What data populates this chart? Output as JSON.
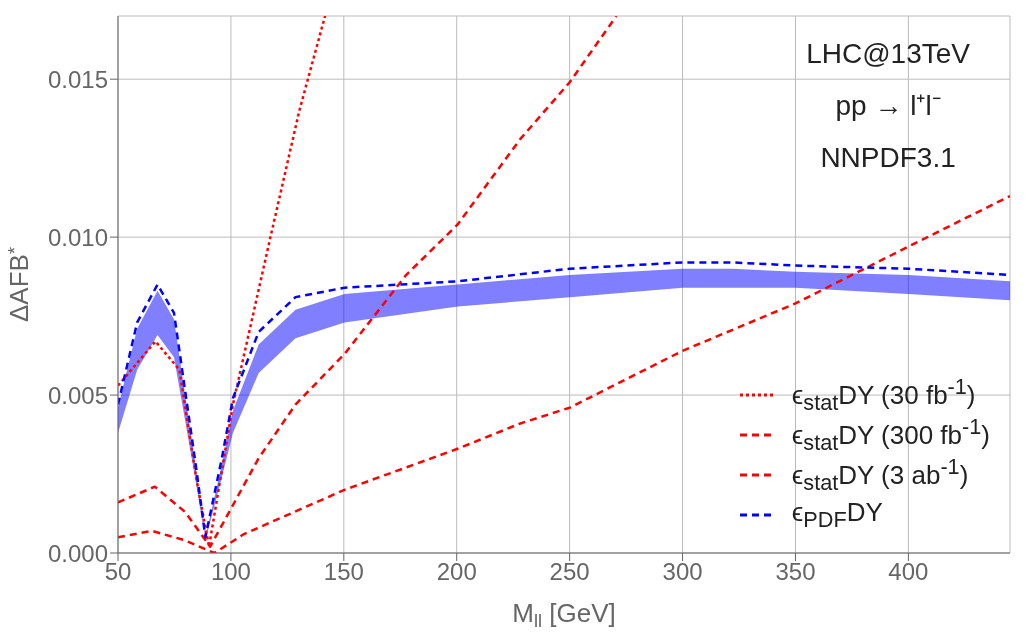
{
  "chart_data": {
    "type": "line",
    "xlabel": "M$_{ll}$  [GeV]",
    "ylabel": "ΔAFB$^{*}$",
    "xlim": [
      50,
      445
    ],
    "ylim": [
      0,
      0.017
    ],
    "xticks": [
      50,
      100,
      150,
      200,
      250,
      300,
      350,
      400
    ],
    "yticks": [
      {
        "value": 0,
        "label": "0.000"
      },
      {
        "value": 0.005,
        "label": "0.005"
      },
      {
        "value": 0.01,
        "label": "0.010"
      },
      {
        "value": 0.015,
        "label": "0.015"
      }
    ],
    "grid": true,
    "legend": "bottom right",
    "annotations": [
      "LHC@13TeV",
      "pp → l⁺l⁻",
      "NNPDF3.1"
    ],
    "series": [
      {
        "name": "ϵ$_{stat}$DY (30 fb$^{-1}$)",
        "color": "#ff0000",
        "line_style": "dotted",
        "x": [
          50,
          66.6,
          77.2,
          84.6,
          90.3,
          100.9,
          117.2,
          130.3,
          141.7
        ],
        "values": [
          0.0053,
          0.0067,
          0.0058,
          0.0024,
          0.0002,
          0.0047,
          0.0099,
          0.014,
          0.017
        ]
      },
      {
        "name": "ϵ$_{stat}$DY (300 fb$^{-1}$)",
        "color": "#ff0000",
        "line_style": "dashed",
        "x": [
          50,
          66.3,
          79.7,
          90.8,
          112.3,
          128.6,
          150.3,
          177.6,
          200.4,
          228.1,
          250,
          270.7
        ],
        "values": [
          0.0016,
          0.0021,
          0.0013,
          0.0002,
          0.003,
          0.0047,
          0.0063,
          0.0088,
          0.0104,
          0.0131,
          0.0149,
          0.017
        ]
      },
      {
        "name": "ϵ$_{stat}$DY (3 ab$^{-1}$)",
        "color": "#ff0000",
        "line_style": "dashed",
        "x": [
          50,
          65,
          79.7,
          92.7,
          105.8,
          150.3,
          200.4,
          228.1,
          250,
          300,
          350,
          400,
          445
        ],
        "values": [
          0.0005,
          0.0007,
          0.0004,
          0,
          0.0006,
          0.002,
          0.0033,
          0.0041,
          0.0046,
          0.0064,
          0.0079,
          0.0097,
          0.0113
        ]
      },
      {
        "name": "ϵ$_{PDF}$DY",
        "color": "#0000ff",
        "line_style": "dashed",
        "x": [
          50,
          58.5,
          67.5,
          74.8,
          84.6,
          88.7,
          96,
          100.9,
          112.3,
          128.6,
          150.3,
          200.4,
          250,
          300,
          322,
          350,
          400,
          445
        ],
        "values": [
          0.0047,
          0.0073,
          0.0085,
          0.0076,
          0.0027,
          0.0005,
          0.003,
          0.0049,
          0.007,
          0.0081,
          0.0084,
          0.0086,
          0.009,
          0.0092,
          0.0092,
          0.0091,
          0.009,
          0.0088
        ],
        "lower": [
          0.0038,
          0.0058,
          0.0069,
          0.0062,
          0.0022,
          0.0004,
          0.0024,
          0.0038,
          0.0057,
          0.0068,
          0.0073,
          0.0078,
          0.0081,
          0.0084,
          0.0084,
          0.0084,
          0.0082,
          0.008
        ],
        "upper": [
          0.0046,
          0.0071,
          0.0083,
          0.0074,
          0.0026,
          0.0005,
          0.0028,
          0.0045,
          0.0066,
          0.0077,
          0.0082,
          0.0085,
          0.0088,
          0.009,
          0.009,
          0.0089,
          0.0088,
          0.0086
        ]
      }
    ]
  }
}
